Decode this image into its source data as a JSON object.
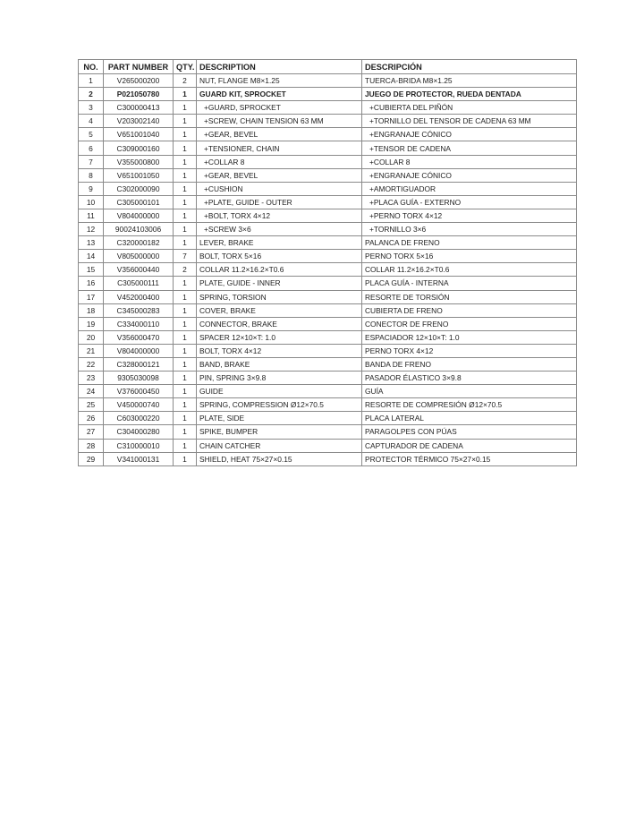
{
  "table": {
    "headers": {
      "no": "NO.",
      "part_number": "PART NUMBER",
      "qty": "QTY.",
      "description": "DESCRIPTION",
      "descripcion": "DESCRIPCIÓN"
    },
    "rows": [
      {
        "no": "1",
        "part": "V265000200",
        "qty": "2",
        "desc": "NUT, FLANGE M8×1.25",
        "desc_es": "TUERCA-BRIDA M8×1.25"
      },
      {
        "no": "2",
        "part": "P021050780",
        "qty": "1",
        "desc": "GUARD KIT, SPROCKET",
        "desc_es": "JUEGO DE PROTECTOR, RUEDA DENTADA",
        "bold": true
      },
      {
        "no": "3",
        "part": "C300000413",
        "qty": "1",
        "desc": "+GUARD, SPROCKET",
        "desc_es": "+CUBIERTA DEL PIÑÓN",
        "sub": true
      },
      {
        "no": "4",
        "part": "V203002140",
        "qty": "1",
        "desc": "+SCREW, CHAIN TENSION 63 MM",
        "desc_es": "+TORNILLO DEL TENSOR DE CADENA 63 MM",
        "sub": true
      },
      {
        "no": "5",
        "part": "V651001040",
        "qty": "1",
        "desc": "+GEAR, BEVEL",
        "desc_es": "+ENGRANAJE CÓNICO",
        "sub": true
      },
      {
        "no": "6",
        "part": "C309000160",
        "qty": "1",
        "desc": "+TENSIONER, CHAIN",
        "desc_es": "+TENSOR DE CADENA",
        "sub": true
      },
      {
        "no": "7",
        "part": "V355000800",
        "qty": "1",
        "desc": "+COLLAR 8",
        "desc_es": "+COLLAR 8",
        "sub": true
      },
      {
        "no": "8",
        "part": "V651001050",
        "qty": "1",
        "desc": "+GEAR, BEVEL",
        "desc_es": "+ENGRANAJE CÓNICO",
        "sub": true
      },
      {
        "no": "9",
        "part": "C302000090",
        "qty": "1",
        "desc": "+CUSHION",
        "desc_es": "+AMORTIGUADOR",
        "sub": true
      },
      {
        "no": "10",
        "part": "C305000101",
        "qty": "1",
        "desc": "+PLATE, GUIDE - OUTER",
        "desc_es": "+PLACA GUÍA - EXTERNO",
        "sub": true
      },
      {
        "no": "11",
        "part": "V804000000",
        "qty": "1",
        "desc": "+BOLT, TORX 4×12",
        "desc_es": "+PERNO TORX 4×12",
        "sub": true
      },
      {
        "no": "12",
        "part": "90024103006",
        "qty": "1",
        "desc": "+SCREW 3×6",
        "desc_es": "+TORNILLO 3×6",
        "sub": true
      },
      {
        "no": "13",
        "part": "C320000182",
        "qty": "1",
        "desc": "LEVER, BRAKE",
        "desc_es": "PALANCA DE FRENO"
      },
      {
        "no": "14",
        "part": "V805000000",
        "qty": "7",
        "desc": "BOLT, TORX 5×16",
        "desc_es": "PERNO TORX 5×16"
      },
      {
        "no": "15",
        "part": "V356000440",
        "qty": "2",
        "desc": "COLLAR 11.2×16.2×T0.6",
        "desc_es": "COLLAR 11.2×16.2×T0.6"
      },
      {
        "no": "16",
        "part": "C305000111",
        "qty": "1",
        "desc": "PLATE, GUIDE - INNER",
        "desc_es": "PLACA GUÍA - INTERNA"
      },
      {
        "no": "17",
        "part": "V452000400",
        "qty": "1",
        "desc": "SPRING, TORSION",
        "desc_es": "RESORTE DE TORSIÓN"
      },
      {
        "no": "18",
        "part": "C345000283",
        "qty": "1",
        "desc": "COVER, BRAKE",
        "desc_es": "CUBIERTA DE FRENO"
      },
      {
        "no": "19",
        "part": "C334000110",
        "qty": "1",
        "desc": "CONNECTOR, BRAKE",
        "desc_es": "CONECTOR DE FRENO"
      },
      {
        "no": "20",
        "part": "V356000470",
        "qty": "1",
        "desc": "SPACER 12×10×T: 1.0",
        "desc_es": "ESPACIADOR 12×10×T: 1.0"
      },
      {
        "no": "21",
        "part": "V804000000",
        "qty": "1",
        "desc": "BOLT, TORX 4×12",
        "desc_es": "PERNO TORX 4×12"
      },
      {
        "no": "22",
        "part": "C328000121",
        "qty": "1",
        "desc": "BAND, BRAKE",
        "desc_es": "BANDA DE FRENO"
      },
      {
        "no": "23",
        "part": "9305030098",
        "qty": "1",
        "desc": "PIN, SPRING 3×9.8",
        "desc_es": "PASADOR ÉLASTICO 3×9.8"
      },
      {
        "no": "24",
        "part": "V376000450",
        "qty": "1",
        "desc": "GUIDE",
        "desc_es": "GUÍA"
      },
      {
        "no": "25",
        "part": "V450000740",
        "qty": "1",
        "desc": "SPRING, COMPRESSION Ø12×70.5",
        "desc_es": "RESORTE DE COMPRESIÓN Ø12×70.5"
      },
      {
        "no": "26",
        "part": "C603000220",
        "qty": "1",
        "desc": "PLATE, SIDE",
        "desc_es": "PLACA LATERAL"
      },
      {
        "no": "27",
        "part": "C304000280",
        "qty": "1",
        "desc": "SPIKE, BUMPER",
        "desc_es": "PARAGOLPES CON PÚAS"
      },
      {
        "no": "28",
        "part": "C310000010",
        "qty": "1",
        "desc": "CHAIN CATCHER",
        "desc_es": "CAPTURADOR DE CADENA"
      },
      {
        "no": "29",
        "part": "V341000131",
        "qty": "1",
        "desc": "SHIELD, HEAT 75×27×0.15",
        "desc_es": "PROTECTOR TÉRMICO 75×27×0.15"
      }
    ]
  }
}
